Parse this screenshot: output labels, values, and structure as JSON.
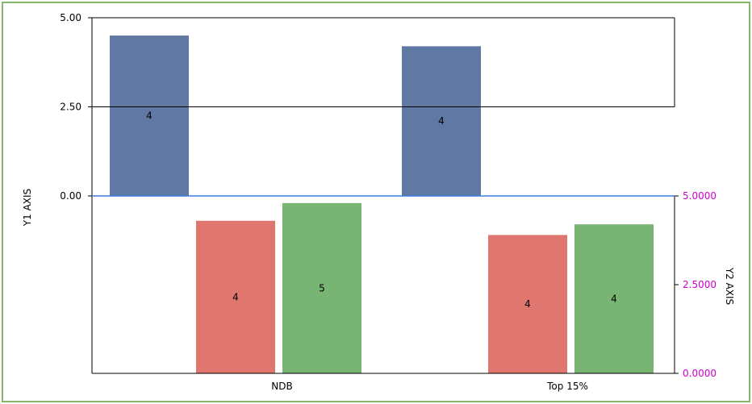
{
  "chart_data": {
    "type": "bar",
    "categories": [
      "NDB",
      "Top 15%"
    ],
    "y1_axis": {
      "label": "Y1 AXIS",
      "range": [
        -5.0,
        5.0
      ],
      "ticks": [
        "5.00",
        "2.50",
        "0.00"
      ],
      "tick_values": [
        5.0,
        2.5,
        0.0
      ]
    },
    "y2_axis": {
      "label": "Y2 AXIS",
      "range": [
        0.0,
        5.0
      ],
      "ticks": [
        "5.0000",
        "2.5000",
        "0.0000"
      ],
      "tick_values": [
        5.0,
        2.5,
        0.0
      ],
      "color": "#cc00cc"
    },
    "series": [
      {
        "axis": "y1",
        "color": "#6078a4",
        "values": [
          4.5,
          4.2
        ],
        "labels": [
          "4",
          "4"
        ]
      },
      {
        "axis": "y2",
        "color": "#df7670",
        "values": [
          4.3,
          3.9
        ],
        "labels": [
          "4",
          "4"
        ]
      },
      {
        "axis": "y2",
        "color": "#78b474",
        "values": [
          4.8,
          4.2
        ],
        "labels": [
          "5",
          "4"
        ]
      }
    ],
    "zero_line_color": "#3a7fd8",
    "grid": false
  }
}
